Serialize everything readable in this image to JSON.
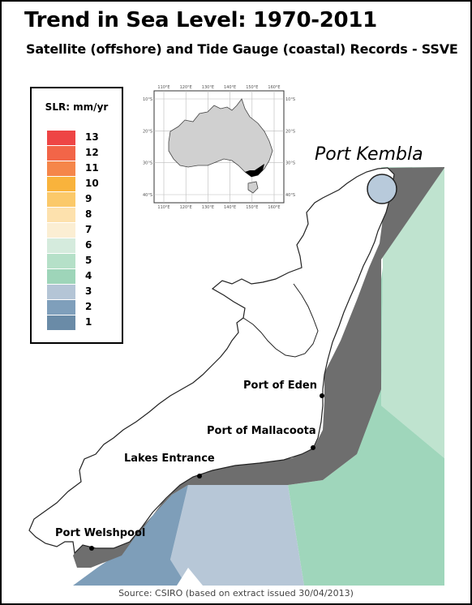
{
  "title": "Trend in Sea Level: 1970-2011",
  "subtitle": "Satellite (offshore) and Tide Gauge (coastal) Records - SSVE",
  "legend": {
    "title": "SLR: mm/yr",
    "items": [
      {
        "label": "13",
        "color": "#ee4545"
      },
      {
        "label": "12",
        "color": "#f26548"
      },
      {
        "label": "11",
        "color": "#f5864a"
      },
      {
        "label": "10",
        "color": "#f9b33c"
      },
      {
        "label": "9",
        "color": "#fbc96a"
      },
      {
        "label": "8",
        "color": "#fde1ad"
      },
      {
        "label": "7",
        "color": "#fbeed3"
      },
      {
        "label": "6",
        "color": "#d5ebdd"
      },
      {
        "label": "5",
        "color": "#b5e0c8"
      },
      {
        "label": "4",
        "color": "#9ed5b9"
      },
      {
        "label": "3",
        "color": "#b4c5d6"
      },
      {
        "label": "2",
        "color": "#7f9fbb"
      },
      {
        "label": "1",
        "color": "#6a8ba7"
      }
    ]
  },
  "inset_map": {
    "top_ticks": [
      "110°E",
      "120°E",
      "130°E",
      "140°E",
      "150°E",
      "160°E"
    ],
    "bottom_ticks": [
      "110°E",
      "120°E",
      "130°E",
      "140°E",
      "150°E",
      "160°E"
    ],
    "left_ticks": [
      "10°S",
      "20°S",
      "30°S",
      "40°S"
    ],
    "right_ticks": [
      "10°S",
      "20°S",
      "30°S",
      "40°S"
    ]
  },
  "places": {
    "port_kembla": "Port Kembla",
    "port_of_eden": "Port of Eden",
    "port_of_mallacoota": "Port of Mallacoota",
    "lakes_entrance": "Lakes Entrance",
    "port_welshpool": "Port Welshpool"
  },
  "source": "Source: CSIRO (based on extract issued 30/04/2013)"
}
